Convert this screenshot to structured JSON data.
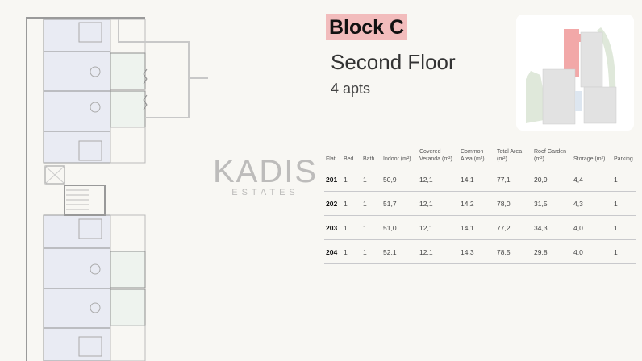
{
  "header": {
    "title": "Block C",
    "subtitle": "Second Floor",
    "apartment_count": "4 apts",
    "title_highlight_color": "#f2bcbc"
  },
  "watermark": {
    "name": "KADIS",
    "tagline": "ESTATES"
  },
  "table": {
    "headers": [
      "Flat",
      "Bed",
      "Bath",
      "Indoor (m²)",
      "Covered Veranda (m²)",
      "Common Area (m²)",
      "Total Area (m²)",
      "Roof Garden (m²)",
      "Storage (m²)",
      "Parking"
    ],
    "rows": [
      [
        "201",
        "1",
        "1",
        "50,9",
        "12,1",
        "14,1",
        "77,1",
        "20,9",
        "4,4",
        "1"
      ],
      [
        "202",
        "1",
        "1",
        "51,7",
        "12,1",
        "14,2",
        "78,0",
        "31,5",
        "4,3",
        "1"
      ],
      [
        "203",
        "1",
        "1",
        "51,0",
        "12,1",
        "14,1",
        "77,2",
        "34,3",
        "4,0",
        "1"
      ],
      [
        "204",
        "1",
        "1",
        "52,1",
        "12,1",
        "14,3",
        "78,5",
        "29,8",
        "4,0",
        "1"
      ]
    ]
  },
  "site_map": {
    "highlight_color": "#f2a8a8",
    "highlighted_block": "Block C"
  }
}
